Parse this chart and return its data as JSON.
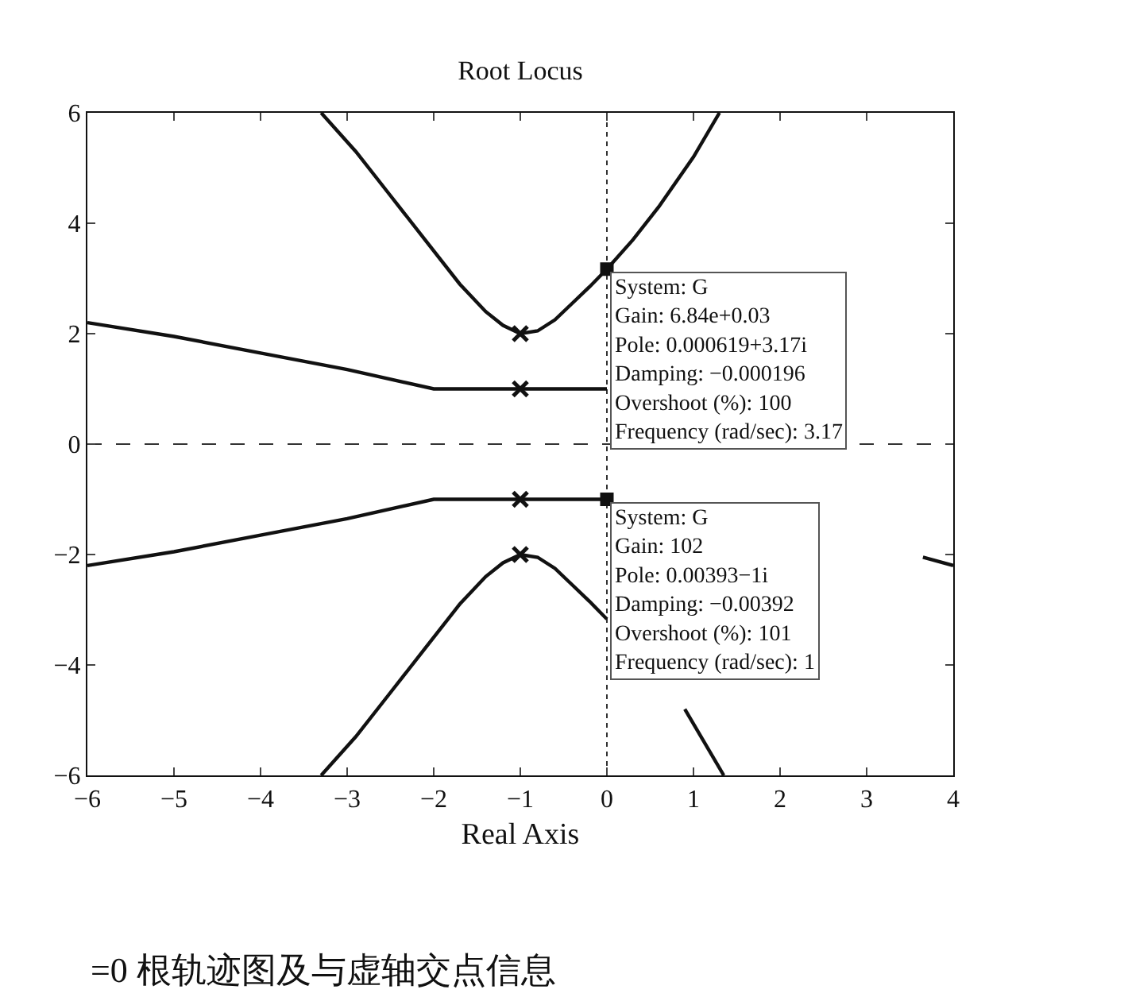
{
  "chart_data": {
    "type": "line",
    "title": "Root Locus",
    "xlabel": "Real Axis",
    "xlim": [
      -6,
      4
    ],
    "ylim": [
      -6,
      6
    ],
    "xticks": [
      -6,
      -5,
      -4,
      -3,
      -2,
      -1,
      0,
      1,
      2,
      3,
      4
    ],
    "yticks": [
      -6,
      -4,
      -2,
      0,
      2,
      4,
      6
    ],
    "grid": false,
    "line_style": "solid",
    "marker": "none",
    "series": [
      {
        "color": "#111111",
        "x": [
          -3.3,
          -2.9,
          -2.5,
          -2.1,
          -1.7,
          -1.4,
          -1.2,
          -1,
          -0.8,
          -0.6,
          -0.4,
          -0.2,
          0,
          0.3,
          0.6,
          1,
          1.3
        ],
        "values": [
          6,
          5.3,
          4.5,
          3.7,
          2.9,
          2.4,
          2.15,
          2,
          2.05,
          2.25,
          2.55,
          2.85,
          3.17,
          3.7,
          4.3,
          5.2,
          6
        ]
      },
      {
        "color": "#111111",
        "x": [
          -6,
          -5,
          -4,
          -3,
          -2,
          -1,
          0
        ],
        "values": [
          2.2,
          1.95,
          1.65,
          1.35,
          1,
          1,
          1
        ]
      },
      {
        "color": "#111111",
        "x": [
          -6,
          -5,
          -4,
          -3,
          -2,
          -1,
          0,
          3.6,
          3.65,
          4
        ],
        "values": [
          -2.2,
          -1.95,
          -1.65,
          -1.35,
          -1,
          -1,
          -1,
          null,
          -2.05,
          -2.2
        ]
      },
      {
        "color": "#111111",
        "x": [
          -3.3,
          -2.9,
          -2.5,
          -2.1,
          -1.7,
          -1.4,
          -1.2,
          -1,
          -0.8,
          -0.6,
          -0.4,
          -0.2,
          0,
          0.5,
          0.9,
          1.35
        ],
        "values": [
          -6,
          -5.3,
          -4.5,
          -3.7,
          -2.9,
          -2.4,
          -2.15,
          -2,
          -2.05,
          -2.25,
          -2.55,
          -2.85,
          -3.17,
          null,
          -4.8,
          -6
        ]
      },
      {
        "type": "scatter",
        "marker": "cross",
        "color": "#111111",
        "x": [
          -1,
          -1,
          -1,
          -1
        ],
        "values": [
          2,
          1,
          -1,
          -2
        ]
      },
      {
        "type": "scatter",
        "marker": "square",
        "color": "#111111",
        "x": [
          0,
          0
        ],
        "values": [
          3.17,
          -1
        ]
      }
    ],
    "ref_lines": [
      {
        "axis": "y",
        "value": 0,
        "line_style": "dashed",
        "color": "#333333"
      },
      {
        "axis": "x",
        "value": 0,
        "line_style": "dotted",
        "color": "#333333"
      }
    ],
    "annotations": [
      {
        "text": "System: G\nGain: 6.84e+0.03\nPole: 0.000619+3.17i\nDamping: −0.000196\nOvershoot (%): 100\nFrequency (rad/sec): 3.17",
        "x": 0,
        "y": 3.17
      },
      {
        "text": "System: G\nGain: 102\nPole: 0.00393−1i\nDamping: −0.00392\nOvershoot (%): 101\nFrequency (rad/sec): 1",
        "x": 0,
        "y": -1
      },
      "=0 根轨迹图及与虚轴交点信息"
    ]
  }
}
